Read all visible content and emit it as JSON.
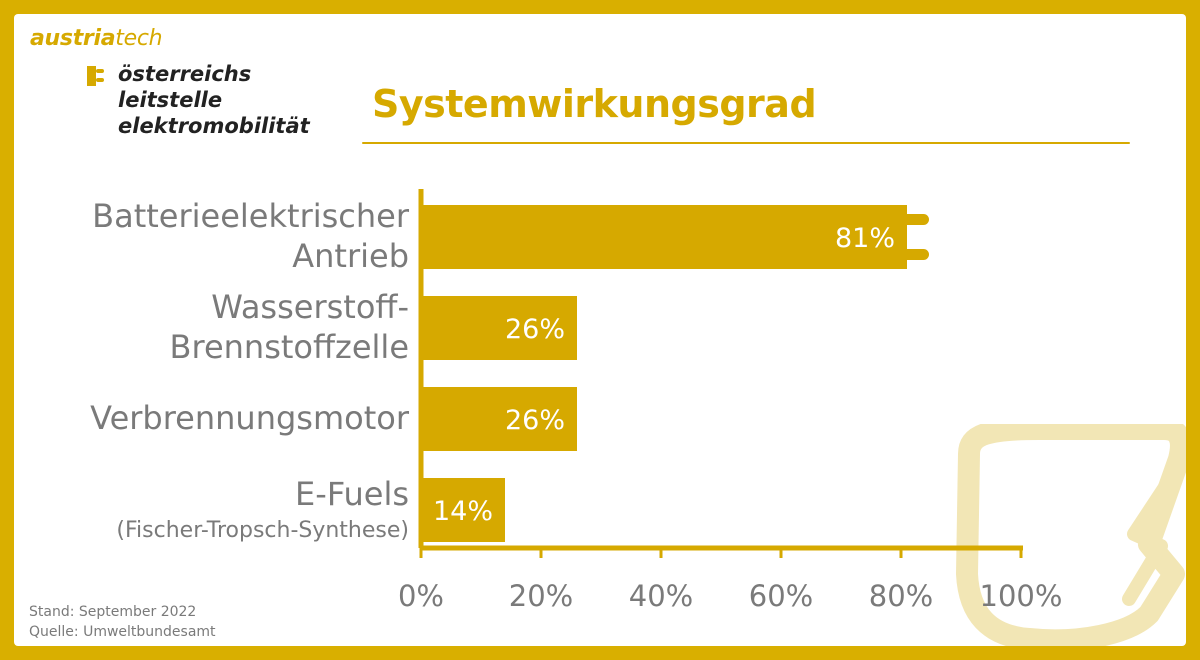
{
  "logo": {
    "brand_main": "austria",
    "brand_accent": "tech",
    "sub_lines": [
      "österreichs",
      "leitstelle",
      "elektromobilität"
    ]
  },
  "title": "Systemwirkungsgrad",
  "footer": {
    "stand": "Stand: September 2022",
    "quelle": "Quelle: Umweltbundesamt"
  },
  "colors": {
    "accent": "#d6a900",
    "frame": "#d9af00",
    "text_grey": "#7a7a7a"
  },
  "chart_data": {
    "type": "bar",
    "orientation": "horizontal",
    "categories": [
      {
        "lines": [
          "Batterieelektrischer",
          "Antrieb"
        ],
        "sub": ""
      },
      {
        "lines": [
          "Wasserstoff-",
          "Brennstoffzelle"
        ],
        "sub": ""
      },
      {
        "lines": [
          "Verbrennungsmotor"
        ],
        "sub": ""
      },
      {
        "lines": [
          "E-Fuels"
        ],
        "sub": "(Fischer-Tropsch-Synthese)"
      }
    ],
    "values": [
      81,
      26,
      26,
      14
    ],
    "value_labels": [
      "81%",
      "26%",
      "26%",
      "14%"
    ],
    "xlim": [
      0,
      100
    ],
    "x_ticks": [
      0,
      20,
      40,
      60,
      80,
      100
    ],
    "x_tick_labels": [
      "0%",
      "20%",
      "40%",
      "60%",
      "80%",
      "100%"
    ],
    "grid": false,
    "first_bar_style": "plug"
  }
}
